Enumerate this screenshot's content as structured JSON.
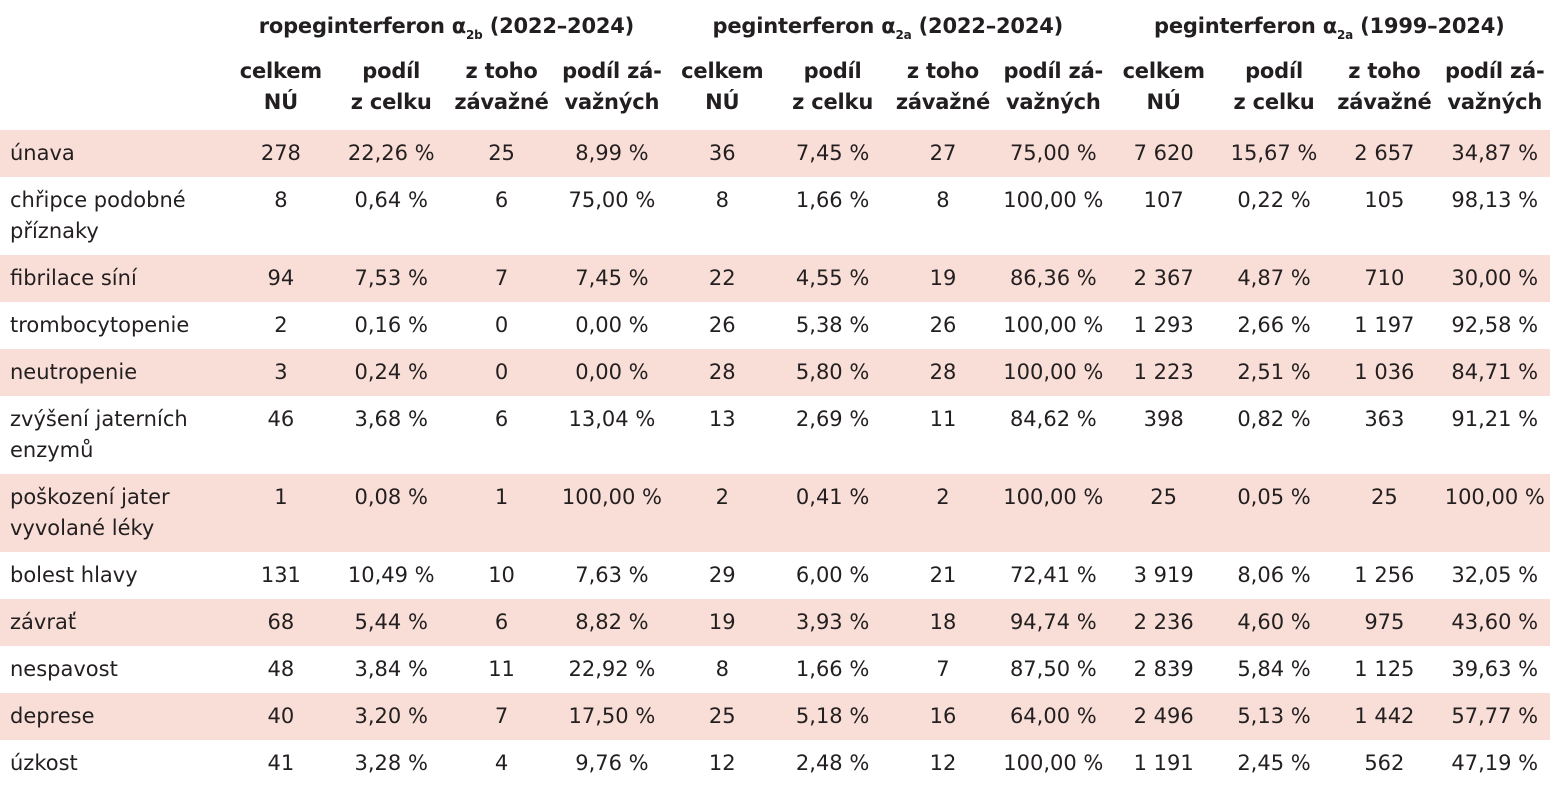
{
  "groups": [
    {
      "name": "ropeginterferon α",
      "sub": "2b",
      "years": " (2022–2024)"
    },
    {
      "name": "peginterferon α",
      "sub": "2a",
      "years": " (2022–2024)"
    },
    {
      "name": "peginterferon α",
      "sub": "2a",
      "years": " (1999–2024)"
    }
  ],
  "subheaders": [
    "celkem\nNÚ",
    "podíl\nz celku",
    "z toho\nzávažné",
    "podíl zá-\nvažných"
  ],
  "rows": [
    {
      "label": "únava",
      "shaded": true,
      "values": [
        "278",
        "22,26 %",
        "25",
        "8,99 %",
        "36",
        "7,45 %",
        "27",
        "75,00 %",
        "7 620",
        "15,67 %",
        "2 657",
        "34,87 %"
      ]
    },
    {
      "label": "chřipce podobné příznaky",
      "shaded": false,
      "values": [
        "8",
        "0,64 %",
        "6",
        "75,00 %",
        "8",
        "1,66 %",
        "8",
        "100,00 %",
        "107",
        "0,22 %",
        "105",
        "98,13 %"
      ]
    },
    {
      "label": "fibrilace síní",
      "shaded": true,
      "values": [
        "94",
        "7,53 %",
        "7",
        "7,45 %",
        "22",
        "4,55 %",
        "19",
        "86,36 %",
        "2 367",
        "4,87 %",
        "710",
        "30,00 %"
      ]
    },
    {
      "label": "trombocytopenie",
      "shaded": false,
      "values": [
        "2",
        "0,16 %",
        "0",
        "0,00 %",
        "26",
        "5,38 %",
        "26",
        "100,00 %",
        "1 293",
        "2,66 %",
        "1 197",
        "92,58 %"
      ]
    },
    {
      "label": "neutropenie",
      "shaded": true,
      "values": [
        "3",
        "0,24 %",
        "0",
        "0,00 %",
        "28",
        "5,80 %",
        "28",
        "100,00 %",
        "1 223",
        "2,51 %",
        "1 036",
        "84,71 %"
      ]
    },
    {
      "label": "zvýšení jaterních enzymů",
      "shaded": false,
      "values": [
        "46",
        "3,68 %",
        "6",
        "13,04 %",
        "13",
        "2,69 %",
        "11",
        "84,62 %",
        "398",
        "0,82 %",
        "363",
        "91,21 %"
      ]
    },
    {
      "label": "poškození jater vyvolané léky",
      "shaded": true,
      "values": [
        "1",
        "0,08 %",
        "1",
        "100,00 %",
        "2",
        "0,41 %",
        "2",
        "100,00 %",
        "25",
        "0,05 %",
        "25",
        "100,00 %"
      ]
    },
    {
      "label": "bolest hlavy",
      "shaded": false,
      "values": [
        "131",
        "10,49 %",
        "10",
        "7,63 %",
        "29",
        "6,00 %",
        "21",
        "72,41 %",
        "3 919",
        "8,06 %",
        "1 256",
        "32,05 %"
      ]
    },
    {
      "label": "závrať",
      "shaded": true,
      "values": [
        "68",
        "5,44 %",
        "6",
        "8,82 %",
        "19",
        "3,93 %",
        "18",
        "94,74 %",
        "2 236",
        "4,60 %",
        "975",
        "43,60 %"
      ]
    },
    {
      "label": "nespavost",
      "shaded": false,
      "values": [
        "48",
        "3,84 %",
        "11",
        "22,92 %",
        "8",
        "1,66 %",
        "7",
        "87,50 %",
        "2 839",
        "5,84 %",
        "1 125",
        "39,63 %"
      ]
    },
    {
      "label": "deprese",
      "shaded": true,
      "values": [
        "40",
        "3,20 %",
        "7",
        "17,50 %",
        "25",
        "5,18 %",
        "16",
        "64,00 %",
        "2 496",
        "5,13 %",
        "1 442",
        "57,77 %"
      ]
    },
    {
      "label": "úzkost",
      "shaded": false,
      "values": [
        "41",
        "3,28 %",
        "4",
        "9,76 %",
        "12",
        "2,48 %",
        "12",
        "100,00 %",
        "1 191",
        "2,45 %",
        "562",
        "47,19 %"
      ]
    }
  ]
}
